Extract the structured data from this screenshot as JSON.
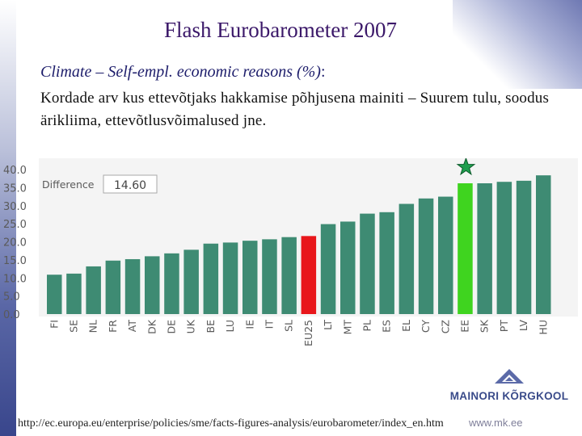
{
  "slide": {
    "title": "Flash Eurobarometer 2007",
    "subtitle_italic": "Climate – Self-empl. economic reasons (%)",
    "subtitle_colon": ":",
    "body_text": "Kordade arv kus ettevõtjaks hakkamise põhjusena mainiti – Suurem tulu, soodus ärikliima, ettevõtlusvõimalused jne.",
    "source_url": "http://ec.europa.eu/enterprise/policies/sme/facts-figures-analysis/eurobarometer/index_en.htm",
    "site": "www.mk.ee",
    "logo_name": "MAINORI KÕRGKOOL"
  },
  "chart_data": {
    "type": "bar",
    "categories": [
      "FI",
      "SE",
      "NL",
      "FR",
      "AT",
      "DK",
      "DE",
      "UK",
      "BE",
      "LU",
      "IE",
      "IT",
      "SL",
      "EU25",
      "LT",
      "MT",
      "PL",
      "ES",
      "EL",
      "CY",
      "CZ",
      "EE",
      "SK",
      "PT",
      "LV",
      "HU"
    ],
    "values": [
      10.9,
      11.2,
      13.2,
      14.8,
      15.2,
      16.0,
      16.8,
      17.8,
      19.5,
      19.8,
      20.3,
      20.7,
      21.3,
      21.6,
      24.9,
      25.6,
      27.8,
      28.2,
      30.5,
      32.0,
      32.5,
      36.2,
      36.2,
      36.6,
      36.9,
      38.4
    ],
    "highlight": {
      "EU25": "#e8161b",
      "EE": "#3fd41f"
    },
    "bar_color": "#3e8b73",
    "ylim": [
      0,
      40
    ],
    "yticks": [
      "40.0",
      "35.0",
      "30.0",
      "25.0",
      "20.0",
      "15.0",
      "10.0",
      "5.0",
      "0.0"
    ],
    "difference_label": "Difference",
    "difference_value": "14.60",
    "star_color": "#1f9d4d",
    "xlabel": "",
    "ylabel": ""
  }
}
